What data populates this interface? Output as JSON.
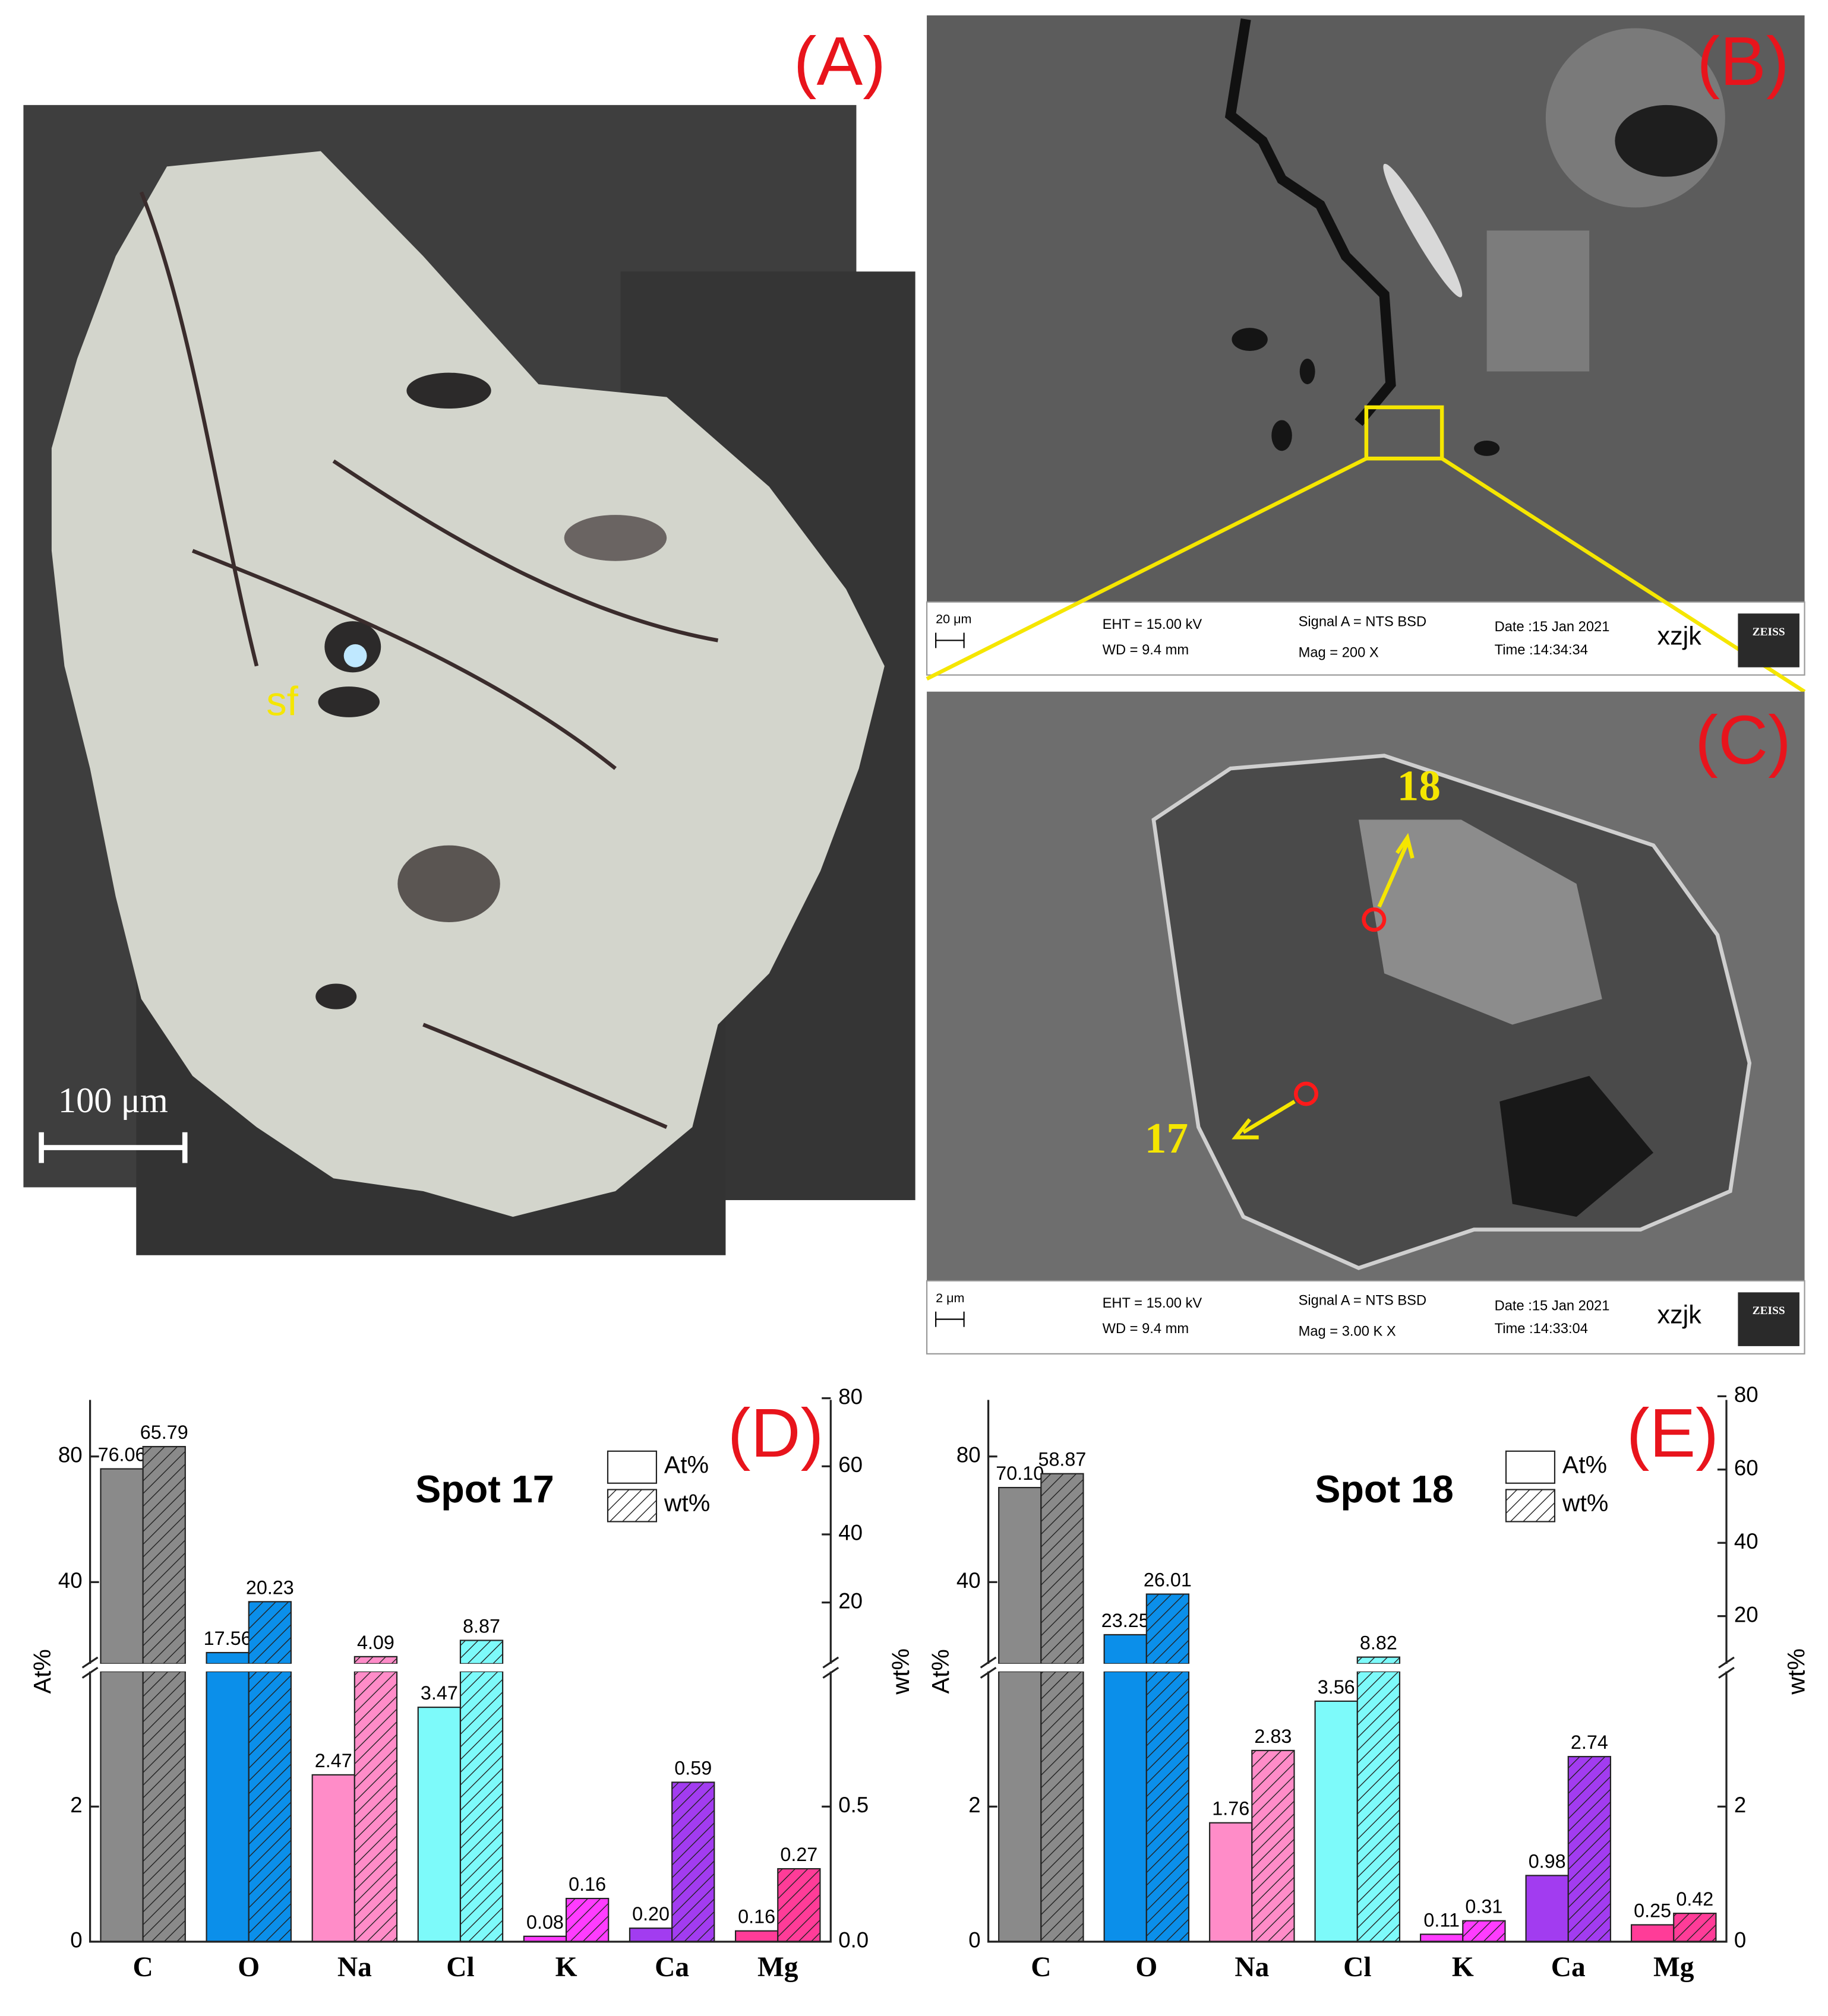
{
  "panels": {
    "A": {
      "label": "(A)",
      "annotation": "sf",
      "scale_bar": "100 μm"
    },
    "B": {
      "label": "(B)",
      "info": {
        "scale": "20 μm",
        "eht": "EHT = 15.00 kV",
        "wd": "WD = 9.4 mm",
        "signal": "Signal A = NTS BSD",
        "mag": "Mag =  200 X",
        "date": "Date :15 Jan 2021",
        "time": "Time :14:34:34",
        "user": "xzjk",
        "brand": "ZEISS"
      }
    },
    "C": {
      "label": "(C)",
      "spots": [
        "18",
        "17"
      ],
      "info": {
        "scale": "2 μm",
        "eht": "EHT = 15.00 kV",
        "wd": "WD = 9.4 mm",
        "signal": "Signal A = NTS BSD",
        "mag": "Mag =  3.00 K X",
        "date": "Date :15 Jan 2021",
        "time": "Time :14:33:04",
        "user": "xzjk",
        "brand": "ZEISS"
      }
    }
  },
  "chart_data": [
    {
      "type": "bar",
      "panel_label": "(D)",
      "title": "Spot 17",
      "categories": [
        "C",
        "O",
        "Na",
        "Cl",
        "K",
        "Ca",
        "Mg"
      ],
      "colors": [
        "#8a8a8a",
        "#0b8fea",
        "#ff8cc8",
        "#7dfafa",
        "#ff3cff",
        "#a23cf0",
        "#ff3c98"
      ],
      "series": [
        {
          "name": "At%",
          "axis": "y",
          "values": [
            76.06,
            17.56,
            2.47,
            3.47,
            0.08,
            0.2,
            0.16
          ],
          "value_labels": [
            "76.06",
            "17.56",
            "2.47",
            "3.47",
            "0.08",
            "0.20",
            "0.16"
          ]
        },
        {
          "name": "wt%",
          "axis": "y2",
          "hatch": true,
          "values": [
            65.79,
            20.23,
            4.09,
            8.87,
            0.16,
            0.59,
            0.27
          ],
          "value_labels": [
            "65.79",
            "20.23",
            "4.09",
            "8.87",
            "0.16",
            "0.59",
            "0.27"
          ]
        }
      ],
      "ylabel": "At%",
      "y2label": "wt%",
      "ylim": [
        0,
        98
      ],
      "ybreak": [
        4,
        14
      ],
      "yticks": [
        0,
        2,
        40,
        80
      ],
      "y2lim": [
        0,
        79.5
      ],
      "y2break": [
        1,
        2
      ],
      "y2ticks": [
        {
          "value": 0,
          "label": "0.0"
        },
        0.5,
        20,
        40,
        60,
        80
      ]
    },
    {
      "type": "bar",
      "panel_label": "(E)",
      "title": "Spot 18",
      "categories": [
        "C",
        "O",
        "Na",
        "Cl",
        "K",
        "Ca",
        "Mg"
      ],
      "colors": [
        "#8a8a8a",
        "#0b8fea",
        "#ff8cc8",
        "#7dfafa",
        "#ff3cff",
        "#a23cf0",
        "#ff3c98"
      ],
      "series": [
        {
          "name": "At%",
          "axis": "y",
          "values": [
            70.1,
            23.25,
            1.76,
            3.56,
            0.11,
            0.98,
            0.25
          ],
          "value_labels": [
            "70.10",
            "23.25",
            "1.76",
            "3.56",
            "0.11",
            "0.98",
            "0.25"
          ]
        },
        {
          "name": "wt%",
          "axis": "y2",
          "hatch": true,
          "values": [
            58.87,
            26.01,
            2.83,
            8.82,
            0.31,
            2.74,
            0.42
          ],
          "value_labels": [
            "58.87",
            "26.01",
            "2.83",
            "8.82",
            "0.31",
            "2.74",
            "0.42"
          ]
        }
      ],
      "ylabel": "At%",
      "y2label": "wt%",
      "ylim": [
        0,
        98
      ],
      "ybreak": [
        4,
        14
      ],
      "yticks": [
        0,
        2,
        40,
        80
      ],
      "y2lim": [
        0,
        79
      ],
      "y2break": [
        4,
        7
      ],
      "y2ticks": [
        0,
        2,
        20,
        40,
        60,
        80
      ]
    }
  ]
}
